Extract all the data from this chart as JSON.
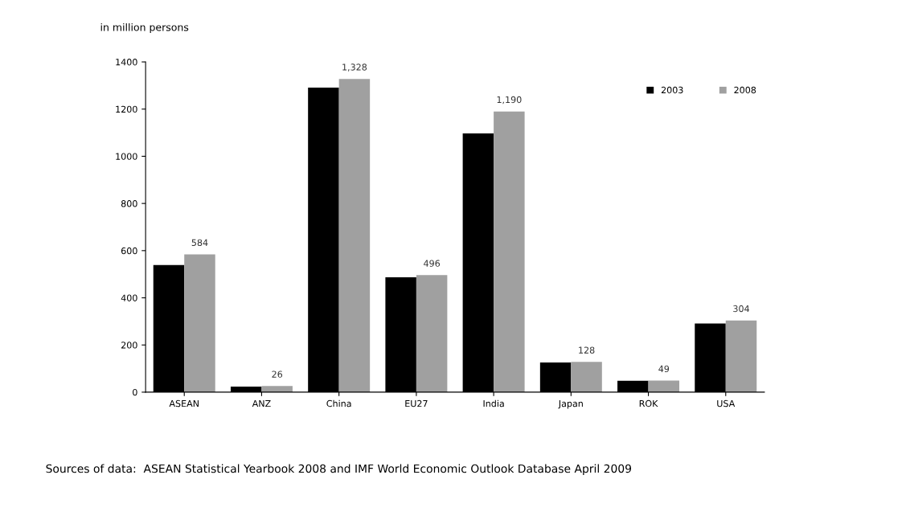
{
  "chart_data": {
    "type": "bar",
    "ylabel": "in million persons",
    "categories": [
      "ASEAN",
      "ANZ",
      "China",
      "EU27",
      "India",
      "Japan",
      "ROK",
      "USA"
    ],
    "series": [
      {
        "name": "2003",
        "color": "#000000",
        "values": [
          539,
          24,
          1291,
          487,
          1097,
          126,
          48,
          291
        ]
      },
      {
        "name": "2008",
        "color": "#a0a0a0",
        "values": [
          584,
          26,
          1328,
          496,
          1190,
          128,
          49,
          304
        ],
        "value_labels": [
          "584",
          "26",
          "1,328",
          "496",
          "1,190",
          "128",
          "49",
          "304"
        ]
      }
    ],
    "ylim": [
      0,
      1400
    ],
    "yticks": [
      0,
      200,
      400,
      600,
      800,
      1000,
      1200,
      1400
    ],
    "grid": false,
    "legend": "top right",
    "annotations": [
      "Sources of data:  ASEAN Statistical Yearbook 2008 and IMF World Economic Outlook Database April 2009"
    ]
  }
}
